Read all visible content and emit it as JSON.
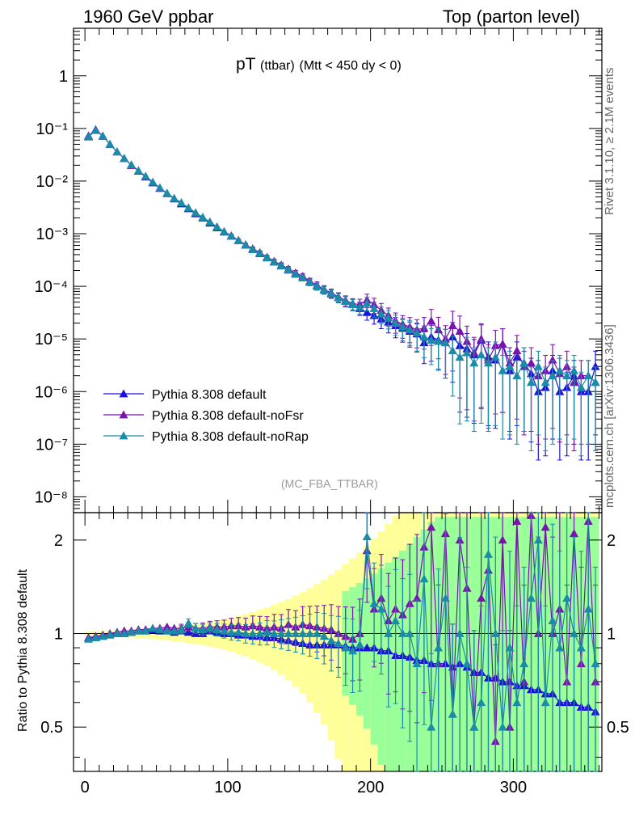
{
  "header": {
    "left": "1960 GeV ppbar",
    "right": "Top (parton level)"
  },
  "side_labels": {
    "rivet": "Rivet 3.1.10, ≥ 2.1M events",
    "mcplots": "mcplots.cern.ch [arXiv:1306.3436]"
  },
  "plot_title": {
    "main": "pT",
    "sub": "(ttbar)",
    "cut": "(Mtt < 450 dy < 0)"
  },
  "analysis_tag": "(MC_FBA_TTBAR)",
  "ratio_ylabel": "Ratio to Pythia 8.308 default",
  "colors": {
    "default": "#1a12d8",
    "noFsr": "#7a12b0",
    "noRap": "#1a8ca8",
    "band_yellow": "#ffff99",
    "band_green": "#99ff99"
  },
  "chart_data": {
    "type": "scatter",
    "main": {
      "yscale": "log",
      "xlim": [
        -8,
        362
      ],
      "ylim": [
        5e-09,
        8
      ],
      "y_tick_labels": [
        "10⁻⁸",
        "10⁻⁷",
        "10⁻⁶",
        "10⁻⁵",
        "10⁻⁴",
        "10⁻³",
        "10⁻²",
        "10⁻¹",
        "1"
      ],
      "legend_placement": "lower-left"
    },
    "ratio": {
      "yscale": "log",
      "ylim": [
        0.36,
        2.45
      ],
      "y_tick_labels": [
        "0.5",
        "1",
        "2"
      ],
      "x_tick_labels": [
        "0",
        "100",
        "200",
        "300"
      ]
    },
    "bin_width": 5,
    "x": [
      2.5,
      7.5,
      12.5,
      17.5,
      22.5,
      27.5,
      32.5,
      37.5,
      42.5,
      47.5,
      52.5,
      57.5,
      62.5,
      67.5,
      72.5,
      77.5,
      82.5,
      87.5,
      92.5,
      97.5,
      102.5,
      107.5,
      112.5,
      117.5,
      122.5,
      127.5,
      132.5,
      137.5,
      142.5,
      147.5,
      152.5,
      157.5,
      162.5,
      167.5,
      172.5,
      177.5,
      182.5,
      187.5,
      192.5,
      197.5,
      202.5,
      207.5,
      212.5,
      217.5,
      222.5,
      227.5,
      232.5,
      237.5,
      242.5,
      247.5,
      252.5,
      257.5,
      262.5,
      267.5,
      272.5,
      277.5,
      282.5,
      287.5,
      292.5,
      297.5,
      302.5,
      307.5,
      312.5,
      317.5,
      322.5,
      327.5,
      332.5,
      337.5,
      342.5,
      347.5,
      352.5,
      357.5
    ],
    "series": [
      {
        "name": "Pythia 8.308 default",
        "values": [
          0.072,
          0.095,
          0.072,
          0.05,
          0.036,
          0.027,
          0.02,
          0.0155,
          0.012,
          0.0093,
          0.0073,
          0.0058,
          0.0046,
          0.0037,
          0.003,
          0.0024,
          0.002,
          0.0016,
          0.0013,
          0.00108,
          0.0009,
          0.00074,
          0.00061,
          0.0005,
          0.00042,
          0.00035,
          0.00029,
          0.000245,
          0.000205,
          0.00017,
          0.000145,
          0.00012,
          0.0001,
          8.5e-05,
          7.2e-05,
          6.1e-05,
          5.2e-05,
          4.5e-05,
          3.8e-05,
          3.2e-05,
          2.8e-05,
          2.4e-05,
          2.1e-05,
          1.8e-05,
          1.6e-05,
          1.4e-05,
          1.25e-05,
          8.5e-06,
          1.1e-05,
          9.5e-06,
          8.5e-06,
          1.1e-05,
          7.5e-06,
          6.5e-06,
          5e-06,
          9.5e-06,
          4.5e-06,
          4e-06,
          8e-06,
          2.5e-06,
          4.5e-06,
          3.5e-06,
          2.2e-06,
          1e-06,
          1.2e-06,
          2.5e-06,
          1e-06,
          1.2e-06,
          2e-06,
          1e-06,
          1e-06,
          3e-06
        ],
        "ratio": [
          0.97,
          0.97,
          0.98,
          0.99,
          1.0,
          1.0,
          1.01,
          1.02,
          1.02,
          1.03,
          1.02,
          1.02,
          1.01,
          1.02,
          1.01,
          1.0,
          1.0,
          1.02,
          1.01,
          1.0,
          1.0,
          0.99,
          0.99,
          0.98,
          0.98,
          0.97,
          0.97,
          0.96,
          0.95,
          0.94,
          0.93,
          0.92,
          0.92,
          0.92,
          0.92,
          0.92,
          0.91,
          0.9,
          0.9,
          0.9,
          0.9,
          0.88,
          0.88,
          0.85,
          0.85,
          0.84,
          0.82,
          0.82,
          0.8,
          0.8,
          0.8,
          0.78,
          0.8,
          0.78,
          0.75,
          0.75,
          0.72,
          0.72,
          0.7,
          0.7,
          0.68,
          0.68,
          0.66,
          0.66,
          0.64,
          0.64,
          0.6,
          0.6,
          0.6,
          0.58,
          0.58,
          0.56
        ]
      },
      {
        "name": "Pythia 8.308 default-noFsr",
        "values": [
          0.07,
          0.093,
          0.071,
          0.05,
          0.036,
          0.027,
          0.02,
          0.0157,
          0.0123,
          0.0095,
          0.0074,
          0.0059,
          0.0047,
          0.0038,
          0.0031,
          0.0025,
          0.00205,
          0.00168,
          0.00135,
          0.0011,
          0.00092,
          0.00075,
          0.00062,
          0.00052,
          0.00044,
          0.00036,
          0.0003,
          0.000255,
          0.000215,
          0.00018,
          0.000155,
          0.000125,
          0.000105,
          8.8e-05,
          7.5e-05,
          6.3e-05,
          5.4e-05,
          4.7e-05,
          4.5e-05,
          5.5e-05,
          4.5e-05,
          3.5e-05,
          2.8e-05,
          2.2e-05,
          1.9e-05,
          1.7e-05,
          1.5e-05,
          1.6e-05,
          2.2e-05,
          1.5e-05,
          1e-05,
          1.8e-05,
          1.4e-05,
          9e-06,
          5.5e-06,
          1e-05,
          4e-06,
          7.5e-06,
          8e-06,
          3.5e-06,
          6e-06,
          3e-06,
          3.5e-06,
          2e-06,
          2.5e-06,
          4e-06,
          2.2e-06,
          3e-06,
          1.5e-06,
          2e-06,
          2e-06,
          1.5e-06
        ],
        "ratio": [
          0.97,
          0.98,
          0.99,
          1.0,
          1.01,
          1.02,
          1.02,
          1.03,
          1.03,
          1.04,
          1.04,
          1.05,
          1.04,
          1.04,
          1.05,
          1.04,
          1.04,
          1.05,
          1.05,
          1.05,
          1.06,
          1.06,
          1.05,
          1.06,
          1.05,
          1.04,
          1.05,
          1.04,
          1.07,
          1.05,
          1.07,
          1.06,
          1.05,
          1.04,
          1.03,
          1.0,
          0.98,
          0.96,
          1.0,
          1.85,
          1.2,
          1.3,
          1.1,
          1.2,
          1.15,
          1.25,
          1.3,
          1.9,
          2.2,
          0.8,
          2.1,
          0.55,
          2.0,
          1.4,
          0.5,
          1.3,
          1.6,
          0.45,
          2.0,
          0.5,
          2.3,
          0.7,
          2.4,
          1.0,
          2.2,
          1.0,
          1.2,
          0.7,
          2.1,
          0.8,
          2.3,
          0.7
        ]
      },
      {
        "name": "Pythia 8.308 default-noRap",
        "values": [
          0.069,
          0.092,
          0.072,
          0.05,
          0.036,
          0.027,
          0.0205,
          0.0158,
          0.0124,
          0.0096,
          0.0075,
          0.0059,
          0.0047,
          0.0039,
          0.0031,
          0.0025,
          0.00205,
          0.00167,
          0.00134,
          0.0011,
          0.0009,
          0.00074,
          0.00061,
          0.0005,
          0.00043,
          0.00035,
          0.00029,
          0.000245,
          0.000205,
          0.00017,
          0.000145,
          0.00012,
          0.0001,
          8.5e-05,
          7.2e-05,
          6.1e-05,
          5.2e-05,
          4.5e-05,
          4e-05,
          4.8e-05,
          3.8e-05,
          3e-05,
          2.5e-05,
          2e-05,
          1.7e-05,
          1.5e-05,
          1.3e-05,
          1.1e-05,
          9.5e-06,
          9e-06,
          8.5e-06,
          6e-06,
          4.5e-06,
          5.5e-06,
          3.5e-06,
          5e-06,
          3.5e-06,
          4.5e-06,
          2.5e-06,
          3e-06,
          2e-06,
          3.5e-06,
          1.5e-06,
          3e-06,
          1.5e-06,
          2e-06,
          2.5e-06,
          2e-06,
          2.5e-06,
          1.2e-06,
          2e-06,
          1.5e-06
        ],
        "ratio": [
          0.96,
          0.97,
          0.98,
          0.99,
          1.0,
          1.0,
          1.01,
          1.02,
          1.02,
          1.04,
          1.03,
          1.02,
          1.02,
          1.03,
          1.08,
          1.04,
          1.03,
          1.04,
          1.03,
          1.02,
          1.01,
          1.01,
          1.0,
          1.0,
          1.0,
          1.01,
          1.0,
          1.0,
          1.0,
          1.0,
          1.0,
          1.0,
          1.0,
          0.98,
          0.95,
          0.93,
          0.9,
          0.88,
          0.92,
          2.05,
          1.25,
          1.2,
          1.0,
          1.1,
          1.0,
          1.0,
          0.8,
          1.5,
          0.5,
          0.9,
          1.3,
          0.55,
          1.0,
          0.8,
          0.5,
          0.6,
          1.8,
          1.0,
          0.5,
          0.9,
          0.6,
          0.8,
          1.3,
          2.0,
          0.6,
          1.1,
          0.9,
          1.3,
          1.0,
          0.9,
          1.2,
          0.8
        ]
      }
    ],
    "legend": [
      "Pythia 8.308 default",
      "Pythia 8.308 default-noFsr",
      "Pythia 8.308 default-noRap"
    ]
  }
}
